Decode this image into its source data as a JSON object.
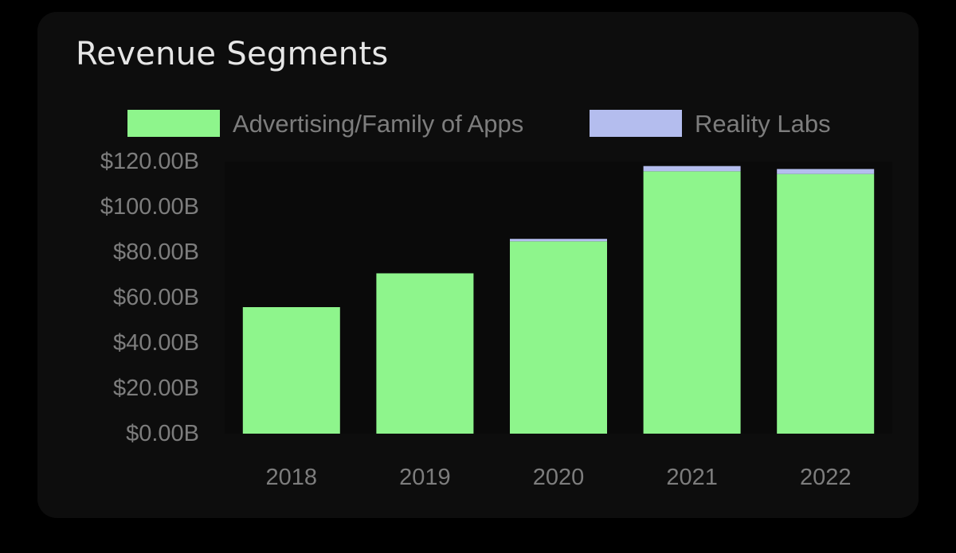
{
  "chart_data": {
    "type": "bar",
    "stacked": true,
    "title": "Revenue Segments",
    "xlabel": "",
    "ylabel": "",
    "categories": [
      "2018",
      "2019",
      "2020",
      "2021",
      "2022"
    ],
    "series": [
      {
        "name": "Advertising/Family of Apps",
        "color": "#8ef58c",
        "values": [
          55.8,
          70.7,
          84.8,
          115.7,
          114.5
        ]
      },
      {
        "name": "Reality Labs",
        "color": "#b4bdee",
        "values": [
          0,
          0,
          1.1,
          2.3,
          2.2
        ]
      }
    ],
    "ylim": [
      0,
      120
    ],
    "yticks": [
      {
        "value": 0,
        "label": "$0.00B"
      },
      {
        "value": 20,
        "label": "$20.00B"
      },
      {
        "value": 40,
        "label": "$40.00B"
      },
      {
        "value": 60,
        "label": "$60.00B"
      },
      {
        "value": 80,
        "label": "$80.00B"
      },
      {
        "value": 100,
        "label": "$100.00B"
      },
      {
        "value": 120,
        "label": "$120.00B"
      }
    ],
    "legend_position": "top",
    "grid": false
  },
  "colors": {
    "background": "#000000",
    "card": "#0d0d0d",
    "plot_area": "#0a0a0a",
    "title_text": "#e6e6e6",
    "axis_text": "#7d7d7d"
  }
}
